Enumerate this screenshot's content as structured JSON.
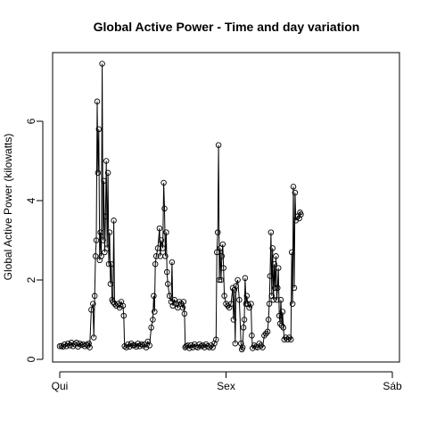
{
  "chart_data": {
    "type": "line",
    "title": "Global Active Power - Time and day variation",
    "xlabel": "",
    "ylabel": "Global Active Power (kilowatts)",
    "x_ticks": [
      "Qui",
      "Sex",
      "Sáb"
    ],
    "x_range_days": [
      0,
      2
    ],
    "y_ticks": [
      0,
      2,
      4,
      6
    ],
    "ylim": [
      0,
      7.5
    ],
    "grid": false,
    "markers": "open-circle",
    "series": [
      {
        "name": "",
        "points": [
          [
            0.0,
            0.33
          ],
          [
            0.01,
            0.34
          ],
          [
            0.02,
            0.32
          ],
          [
            0.03,
            0.38
          ],
          [
            0.04,
            0.33
          ],
          [
            0.05,
            0.4
          ],
          [
            0.06,
            0.35
          ],
          [
            0.07,
            0.42
          ],
          [
            0.08,
            0.33
          ],
          [
            0.09,
            0.38
          ],
          [
            0.1,
            0.42
          ],
          [
            0.11,
            0.32
          ],
          [
            0.12,
            0.4
          ],
          [
            0.13,
            0.36
          ],
          [
            0.14,
            0.38
          ],
          [
            0.15,
            0.33
          ],
          [
            0.16,
            0.37
          ],
          [
            0.17,
            0.35
          ],
          [
            0.175,
            0.4
          ],
          [
            0.18,
            0.3
          ],
          [
            0.19,
            1.25
          ],
          [
            0.2,
            1.4
          ],
          [
            0.205,
            0.55
          ],
          [
            0.21,
            1.6
          ],
          [
            0.215,
            2.6
          ],
          [
            0.22,
            3.0
          ],
          [
            0.225,
            6.5
          ],
          [
            0.23,
            4.7
          ],
          [
            0.235,
            5.8
          ],
          [
            0.24,
            2.5
          ],
          [
            0.245,
            3.2
          ],
          [
            0.25,
            2.6
          ],
          [
            0.255,
            7.45
          ],
          [
            0.26,
            3.0
          ],
          [
            0.265,
            4.5
          ],
          [
            0.27,
            2.7
          ],
          [
            0.275,
            3.6
          ],
          [
            0.28,
            5.0
          ],
          [
            0.285,
            2.8
          ],
          [
            0.29,
            4.7
          ],
          [
            0.295,
            2.4
          ],
          [
            0.3,
            3.2
          ],
          [
            0.305,
            1.9
          ],
          [
            0.31,
            2.4
          ],
          [
            0.315,
            1.5
          ],
          [
            0.32,
            1.45
          ],
          [
            0.325,
            3.5
          ],
          [
            0.33,
            1.4
          ],
          [
            0.34,
            1.35
          ],
          [
            0.35,
            1.4
          ],
          [
            0.36,
            1.3
          ],
          [
            0.37,
            1.45
          ],
          [
            0.38,
            1.35
          ],
          [
            0.385,
            1.1
          ],
          [
            0.39,
            0.33
          ],
          [
            0.4,
            0.3
          ],
          [
            0.41,
            0.38
          ],
          [
            0.42,
            0.32
          ],
          [
            0.43,
            0.4
          ],
          [
            0.44,
            0.35
          ],
          [
            0.45,
            0.36
          ],
          [
            0.46,
            0.32
          ],
          [
            0.47,
            0.4
          ],
          [
            0.48,
            0.33
          ],
          [
            0.49,
            0.38
          ],
          [
            0.5,
            0.35
          ],
          [
            0.51,
            0.38
          ],
          [
            0.52,
            0.3
          ],
          [
            0.53,
            0.45
          ],
          [
            0.54,
            0.35
          ],
          [
            0.55,
            0.8
          ],
          [
            0.56,
            1.0
          ],
          [
            0.565,
            1.6
          ],
          [
            0.57,
            1.2
          ],
          [
            0.575,
            2.4
          ],
          [
            0.58,
            2.6
          ],
          [
            0.59,
            2.8
          ],
          [
            0.6,
            3.3
          ],
          [
            0.605,
            2.6
          ],
          [
            0.61,
            3.0
          ],
          [
            0.62,
            2.8
          ],
          [
            0.625,
            4.45
          ],
          [
            0.63,
            3.8
          ],
          [
            0.635,
            2.6
          ],
          [
            0.64,
            3.2
          ],
          [
            0.645,
            2.2
          ],
          [
            0.65,
            1.9
          ],
          [
            0.66,
            1.6
          ],
          [
            0.67,
            1.45
          ],
          [
            0.675,
            2.45
          ],
          [
            0.68,
            1.35
          ],
          [
            0.69,
            1.5
          ],
          [
            0.7,
            1.4
          ],
          [
            0.71,
            1.3
          ],
          [
            0.72,
            1.45
          ],
          [
            0.73,
            1.4
          ],
          [
            0.74,
            1.3
          ],
          [
            0.745,
            1.45
          ],
          [
            0.75,
            1.15
          ],
          [
            0.755,
            0.3
          ],
          [
            0.76,
            0.33
          ],
          [
            0.77,
            0.35
          ],
          [
            0.78,
            0.28
          ],
          [
            0.79,
            0.36
          ],
          [
            0.8,
            0.3
          ],
          [
            0.81,
            0.38
          ],
          [
            0.82,
            0.32
          ],
          [
            0.83,
            0.3
          ],
          [
            0.84,
            0.38
          ],
          [
            0.85,
            0.33
          ],
          [
            0.86,
            0.35
          ],
          [
            0.87,
            0.3
          ],
          [
            0.88,
            0.38
          ],
          [
            0.89,
            0.33
          ],
          [
            0.9,
            0.3
          ],
          [
            0.91,
            0.35
          ],
          [
            0.92,
            0.3
          ],
          [
            0.93,
            0.4
          ],
          [
            0.94,
            0.5
          ],
          [
            0.945,
            2.7
          ],
          [
            0.95,
            3.2
          ],
          [
            0.955,
            5.4
          ],
          [
            0.96,
            2.0
          ],
          [
            0.965,
            2.8
          ],
          [
            0.97,
            2.0
          ],
          [
            0.975,
            2.6
          ],
          [
            0.98,
            2.9
          ],
          [
            0.985,
            2.3
          ],
          [
            0.99,
            1.6
          ],
          [
            1.0,
            1.4
          ],
          [
            1.01,
            1.35
          ],
          [
            1.02,
            1.3
          ],
          [
            1.03,
            1.4
          ],
          [
            1.04,
            1.8
          ],
          [
            1.045,
            1.0
          ],
          [
            1.05,
            1.75
          ],
          [
            1.055,
            0.4
          ],
          [
            1.06,
            1.85
          ],
          [
            1.07,
            2.0
          ],
          [
            1.08,
            1.5
          ],
          [
            1.09,
            0.4
          ],
          [
            1.095,
            0.25
          ],
          [
            1.1,
            0.3
          ],
          [
            1.105,
            0.8
          ],
          [
            1.11,
            1.0
          ],
          [
            1.115,
            2.05
          ],
          [
            1.12,
            1.4
          ],
          [
            1.125,
            1.6
          ],
          [
            1.13,
            1.4
          ],
          [
            1.14,
            1.3
          ],
          [
            1.15,
            1.4
          ],
          [
            1.155,
            0.6
          ],
          [
            1.16,
            0.28
          ],
          [
            1.17,
            0.35
          ],
          [
            1.18,
            0.32
          ],
          [
            1.19,
            0.3
          ],
          [
            1.2,
            0.4
          ],
          [
            1.21,
            0.35
          ],
          [
            1.22,
            0.3
          ],
          [
            1.23,
            0.6
          ],
          [
            1.24,
            0.65
          ],
          [
            1.25,
            0.7
          ],
          [
            1.255,
            1.0
          ],
          [
            1.26,
            1.4
          ],
          [
            1.265,
            2.1
          ],
          [
            1.27,
            3.2
          ],
          [
            1.275,
            1.6
          ],
          [
            1.28,
            2.8
          ],
          [
            1.285,
            1.5
          ],
          [
            1.29,
            2.4
          ],
          [
            1.295,
            1.8
          ],
          [
            1.3,
            2.6
          ],
          [
            1.305,
            1.5
          ],
          [
            1.31,
            1.8
          ],
          [
            1.315,
            2.3
          ],
          [
            1.32,
            1.1
          ],
          [
            1.325,
            0.9
          ],
          [
            1.33,
            1.5
          ],
          [
            1.335,
            0.85
          ],
          [
            1.34,
            1.2
          ],
          [
            1.345,
            0.8
          ],
          [
            1.35,
            0.5
          ],
          [
            1.36,
            0.55
          ],
          [
            1.37,
            0.5
          ],
          [
            1.38,
            0.55
          ],
          [
            1.39,
            0.5
          ],
          [
            1.395,
            2.7
          ],
          [
            1.4,
            1.4
          ],
          [
            1.405,
            4.35
          ],
          [
            1.41,
            1.8
          ],
          [
            1.415,
            4.2
          ],
          [
            1.42,
            3.5
          ],
          [
            1.43,
            3.6
          ],
          [
            1.44,
            3.55
          ],
          [
            1.445,
            3.7
          ],
          [
            1.45,
            3.65
          ]
        ]
      }
    ]
  }
}
